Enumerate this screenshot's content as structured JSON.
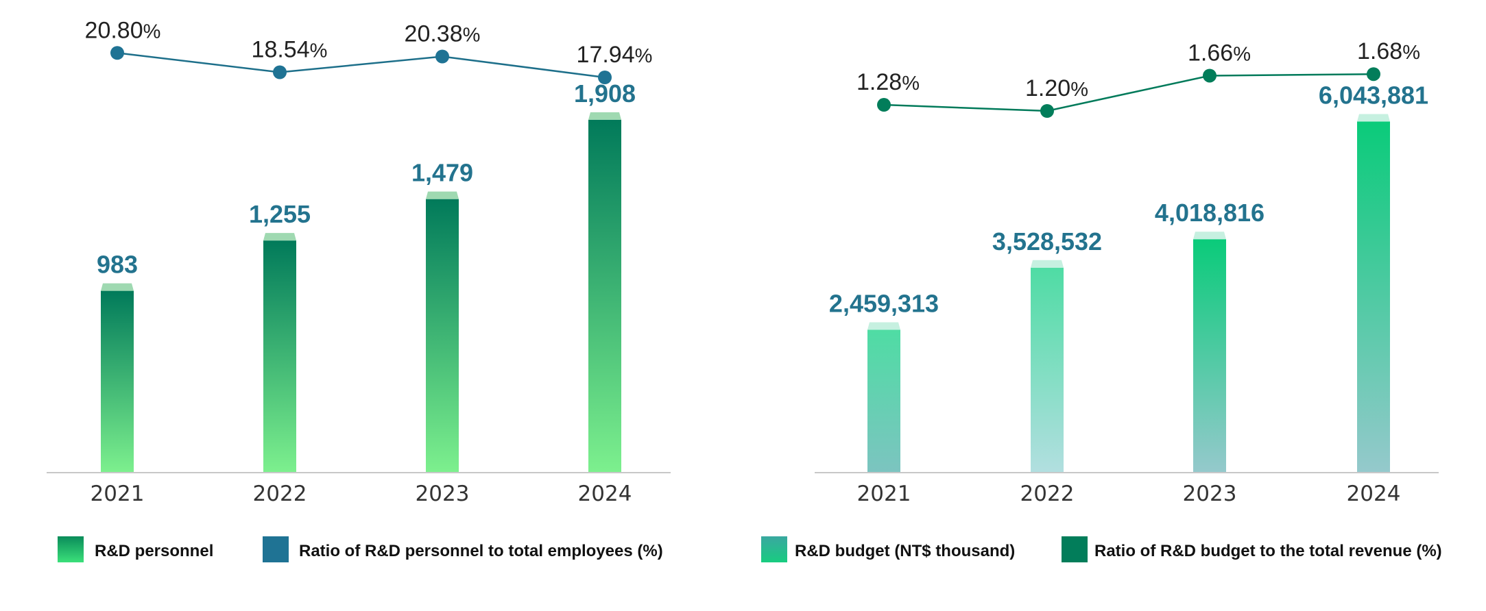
{
  "chart_data": [
    {
      "type": "bar",
      "categories": [
        "2021",
        "2022",
        "2023",
        "2024"
      ],
      "bars": {
        "name": "R&D personnel",
        "values": [
          983,
          1255,
          1479,
          1908
        ],
        "labels": [
          "983",
          "1,255",
          "1,479",
          "1,908"
        ]
      },
      "line": {
        "name": "Ratio of R&D personnel to total employees (%)",
        "values": [
          20.8,
          18.54,
          20.38,
          17.94
        ],
        "labels": [
          "20.80",
          "18.54",
          "20.38",
          "17.94"
        ],
        "unit": "%"
      },
      "colors": {
        "bar_top": "#017a5a",
        "bar_bottom": "#7df08e",
        "cap": "#9fd9b1",
        "line": "#1d6f8a",
        "marker": "#1f7394"
      },
      "legend": {
        "placement": "bottom"
      }
    },
    {
      "type": "bar",
      "categories": [
        "2021",
        "2022",
        "2023",
        "2024"
      ],
      "bars": {
        "name": "R&D budget (NT$ thousand)",
        "values": [
          2459313,
          3528532,
          4018816,
          6043881
        ],
        "labels": [
          "2,459,313",
          "3,528,532",
          "4,018,816",
          "6,043,881"
        ]
      },
      "line": {
        "name": "Ratio of R&D budget to the total revenue (%)",
        "values": [
          1.28,
          1.2,
          1.66,
          1.68
        ],
        "labels": [
          "1.28",
          "1.20",
          "1.66",
          "1.68"
        ],
        "unit": "%"
      },
      "colors": {
        "line": "#017a5a",
        "marker": "#027d5a",
        "cap": "#c6f0e0"
      },
      "legend": {
        "placement": "bottom"
      }
    }
  ]
}
